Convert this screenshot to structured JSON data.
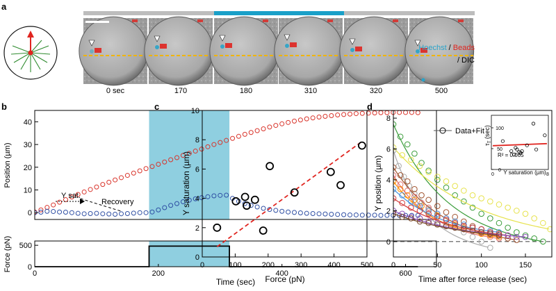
{
  "panel_a": {
    "letter": "a",
    "legend_hoechst": "Hoechst",
    "legend_slash1": " / ",
    "legend_beads": "Beads",
    "legend_dic": "/ DIC",
    "frames": [
      "0 sec",
      "170",
      "180",
      "310",
      "320",
      "500"
    ],
    "colors": {
      "hoechst": "#29a3c9",
      "beads": "#e0241f",
      "force_bar": "#1aa0c8",
      "idle_bar": "#bdbdbd",
      "dash": "#f0b400"
    }
  },
  "chart_data": [
    {
      "panel": "b-top",
      "type": "scatter",
      "letter": "b",
      "ylabel": "Position (µm)",
      "xlim": [
        0,
        650
      ],
      "ylim": [
        -3,
        45
      ],
      "yticks": [
        0,
        10,
        20,
        30,
        40
      ],
      "annotations": {
        "ysat": "Y sat.",
        "recovery": "Recovery"
      },
      "shaded": [
        185,
        315
      ],
      "series": [
        {
          "color": "#d9342b",
          "x": [
            0,
            10,
            20,
            30,
            40,
            50,
            60,
            70,
            80,
            90,
            100,
            110,
            120,
            130,
            140,
            150,
            160,
            170,
            180,
            190,
            200,
            210,
            220,
            230,
            240,
            250,
            260,
            270,
            280,
            290,
            300,
            310,
            320,
            330,
            340,
            350,
            360,
            370,
            380,
            390,
            400,
            410,
            420,
            430,
            440,
            450,
            460,
            470,
            480,
            490,
            500,
            510,
            520,
            530,
            540,
            550,
            560,
            570,
            580,
            590,
            600,
            610,
            620
          ],
          "y": [
            0.3,
            1.2,
            2.3,
            3.4,
            4.6,
            5.7,
            6.9,
            8.0,
            9.1,
            10.2,
            11.3,
            12.4,
            13.4,
            14.4,
            15.4,
            16.4,
            17.4,
            18.4,
            19.4,
            20.3,
            21.3,
            22.3,
            23.3,
            24.2,
            25.2,
            26.1,
            27.1,
            28.0,
            29.0,
            30.0,
            30.9,
            31.8,
            32.7,
            33.6,
            34.5,
            35.3,
            36.1,
            36.9,
            37.7,
            38.4,
            39.1,
            39.7,
            40.3,
            40.8,
            41.3,
            41.7,
            42.1,
            42.4,
            42.7,
            43.0,
            43.2,
            43.4,
            43.6,
            43.7,
            43.8,
            43.9,
            44.0,
            44.0,
            44.1,
            44.1,
            44.1,
            44.1,
            44.0
          ]
        },
        {
          "color": "#2e4ea3",
          "x": [
            0,
            10,
            20,
            30,
            40,
            50,
            60,
            70,
            80,
            90,
            100,
            110,
            120,
            130,
            140,
            150,
            160,
            170,
            180,
            190,
            200,
            210,
            220,
            230,
            240,
            250,
            260,
            270,
            280,
            290,
            300,
            310,
            320,
            330,
            340,
            350,
            360,
            370,
            380,
            390,
            400,
            410,
            420,
            430,
            440,
            450,
            460,
            470,
            480,
            490,
            500,
            510,
            520,
            530,
            540,
            550,
            560,
            570,
            580,
            590,
            600,
            610,
            620
          ],
          "y": [
            0,
            0.2,
            0.6,
            0.5,
            0.3,
            0.2,
            0,
            -0.3,
            -0.5,
            -0.4,
            -0.3,
            -0.5,
            -0.6,
            -0.7,
            -0.5,
            -0.4,
            -0.2,
            0,
            0,
            0.3,
            1.2,
            2.2,
            3.2,
            4.0,
            4.8,
            5.5,
            6.1,
            6.6,
            7.0,
            7.4,
            7.6,
            7.7,
            6.3,
            5.0,
            4.0,
            3.2,
            2.5,
            1.9,
            1.4,
            1.0,
            0.6,
            0.3,
            0.1,
            -0.1,
            -0.3,
            -0.4,
            -0.5,
            -0.6,
            -0.7,
            -0.8,
            -0.9,
            -1.0,
            -1.0,
            -1.1,
            -1.1,
            -1.1,
            -1.2,
            -1.2,
            -1.2,
            -1.2,
            -1.2,
            -1.2,
            -1.2
          ]
        }
      ]
    },
    {
      "panel": "b-bottom",
      "type": "line",
      "xlabel": "Time (sec)",
      "ylabel": "Force (pN)",
      "xlim": [
        0,
        650
      ],
      "ylim": [
        0,
        600
      ],
      "xticks": [
        0,
        200,
        400,
        600
      ],
      "yticks": [
        0,
        500
      ],
      "x": [
        0,
        185,
        185,
        315,
        315,
        620
      ],
      "y": [
        0,
        0,
        480,
        480,
        0,
        0
      ]
    },
    {
      "panel": "c",
      "type": "scatter",
      "letter": "c",
      "xlabel": "Force (pN)",
      "ylabel": "Y saturation (µm)",
      "xlim": [
        0,
        500
      ],
      "ylim": [
        0,
        10
      ],
      "xticks": [
        0,
        100,
        200,
        300,
        400,
        500
      ],
      "yticks": [
        0,
        2,
        4,
        6,
        8,
        10
      ],
      "x": [
        45,
        102,
        130,
        135,
        160,
        185,
        205,
        280,
        390,
        420,
        485
      ],
      "y": [
        2.0,
        3.8,
        4.1,
        3.5,
        3.9,
        1.8,
        6.2,
        4.4,
        5.8,
        4.9,
        7.6
      ],
      "fit": {
        "x": [
          45,
          480
        ],
        "y": [
          0.7,
          7.8
        ],
        "color": "#e0241f"
      }
    },
    {
      "panel": "d",
      "type": "scatter",
      "letter": "d",
      "xlabel": "Time after force release (sec)",
      "ylabel": "Y position (µm)",
      "xlim": [
        0,
        180
      ],
      "ylim": [
        -1,
        8.5
      ],
      "xticks": [
        0,
        50,
        100,
        150
      ],
      "yticks": [
        0,
        2,
        4,
        6,
        8
      ],
      "legend": "Data+Fit",
      "series": [
        {
          "color": "#3a9c3a",
          "y0": 7.6,
          "tau": 60,
          "x": [
            0,
            8,
            16,
            24,
            32,
            40,
            50,
            60,
            70,
            80,
            90,
            100,
            110,
            120,
            130,
            140,
            150,
            160,
            170
          ],
          "y": [
            7.6,
            6.8,
            6.3,
            5.7,
            5.1,
            4.6,
            4.0,
            3.5,
            3.0,
            2.6,
            2.2,
            1.8,
            1.5,
            1.2,
            0.9,
            0.6,
            0.4,
            0.2,
            0.0
          ]
        },
        {
          "color": "#e6e24a",
          "y0": 6.1,
          "tau": 95,
          "x": [
            0,
            10,
            20,
            30,
            40,
            50,
            60,
            70,
            80,
            90,
            100,
            110,
            120,
            130,
            140,
            150,
            160,
            170,
            178
          ],
          "y": [
            6.1,
            5.6,
            5.3,
            4.9,
            4.5,
            4.2,
            3.9,
            3.6,
            3.3,
            3.0,
            2.8,
            2.6,
            2.4,
            2.2,
            2.0,
            1.8,
            1.5,
            1.2,
            0.8
          ]
        },
        {
          "color": "#aaaaaa",
          "y0": 5.9,
          "tau": 35,
          "x": [
            0,
            6,
            12,
            18,
            24,
            30,
            40,
            50,
            60,
            70,
            80,
            90,
            100,
            110
          ],
          "y": [
            5.9,
            4.9,
            4.2,
            3.6,
            3.1,
            2.6,
            2.1,
            1.6,
            1.2,
            0.9,
            0.6,
            0.3,
            0.0,
            -0.4
          ]
        },
        {
          "color": "#a0522d",
          "y0": 4.8,
          "tau": 55,
          "x": [
            0,
            8,
            16,
            24,
            32,
            40,
            50,
            60,
            70,
            80,
            90,
            100,
            110,
            120,
            130,
            140
          ],
          "y": [
            4.8,
            4.3,
            3.9,
            3.4,
            3.0,
            2.7,
            2.3,
            1.9,
            1.6,
            1.3,
            1.0,
            0.8,
            0.6,
            0.4,
            0.2,
            0.1
          ]
        },
        {
          "color": "#e07070",
          "y0": 4.3,
          "tau": 45,
          "x": [
            0,
            8,
            16,
            24,
            32,
            40,
            50,
            60,
            70,
            80,
            90,
            100,
            110,
            120
          ],
          "y": [
            4.3,
            3.7,
            3.3,
            2.9,
            2.5,
            2.2,
            1.8,
            1.5,
            1.2,
            0.9,
            0.7,
            0.5,
            0.3,
            0.2
          ]
        },
        {
          "color": "#ff8c00",
          "y0": 3.9,
          "tau": 50,
          "x": [
            0,
            8,
            16,
            24,
            32,
            40,
            50,
            60,
            70,
            80,
            90,
            100,
            110,
            120
          ],
          "y": [
            3.9,
            3.4,
            3.0,
            2.7,
            2.3,
            2.0,
            1.7,
            1.4,
            1.1,
            0.9,
            0.7,
            0.5,
            0.4,
            0.3
          ]
        },
        {
          "color": "#4a90d9",
          "y0": 3.4,
          "tau": 60,
          "x": [
            0,
            10,
            20,
            30,
            40,
            50,
            60,
            70,
            80,
            90,
            100,
            110,
            120
          ],
          "y": [
            3.4,
            3.0,
            2.6,
            2.3,
            2.0,
            1.8,
            1.5,
            1.3,
            1.1,
            0.9,
            0.8,
            0.7,
            0.6
          ]
        },
        {
          "color": "#d23a3a",
          "y0": 2.8,
          "tau": 70,
          "x": [
            0,
            10,
            20,
            30,
            40,
            50,
            60,
            70,
            80,
            90,
            100,
            110,
            120,
            130
          ],
          "y": [
            2.8,
            2.5,
            2.2,
            2.0,
            1.8,
            1.6,
            1.4,
            1.2,
            1.0,
            0.9,
            0.8,
            0.6,
            0.5,
            0.4
          ]
        },
        {
          "color": "#8c4fb8",
          "y0": 2.0,
          "tau": 80,
          "x": [
            0,
            10,
            20,
            30,
            40,
            50,
            60,
            70,
            80,
            90,
            100,
            110,
            120,
            130,
            140,
            150
          ],
          "y": [
            2.0,
            1.8,
            1.6,
            1.5,
            1.3,
            1.2,
            1.0,
            0.9,
            0.8,
            0.7,
            0.6,
            0.5,
            0.4,
            0.4,
            0.3,
            0.3
          ]
        },
        {
          "color": "#7a4a2a",
          "y0": 1.8,
          "tau": 90,
          "x": [
            0,
            10,
            20,
            30,
            40,
            50,
            60,
            70,
            80,
            90,
            100,
            110,
            120
          ],
          "y": [
            1.8,
            1.6,
            1.5,
            1.3,
            1.2,
            1.1,
            1.0,
            0.9,
            0.8,
            0.7,
            0.6,
            0.5,
            0.4
          ]
        }
      ],
      "inset": {
        "xlabel": "Y saturation (µm)",
        "ylabel": "τT (sec)",
        "ylabel_main": "τ",
        "ylabel_sub": "T",
        "ylabel_unit": " (sec)",
        "r2": "R² = 0.065",
        "xlim": [
          0,
          8
        ],
        "ylim": [
          0,
          130
        ],
        "xtick_labels": [
          "0",
          "8"
        ],
        "yticks": [
          0,
          50,
          100
        ],
        "x": [
          1.6,
          2.8,
          3.2,
          3.4,
          3.6,
          3.9,
          4.1,
          4.3,
          5.0,
          5.9,
          6.3,
          7.5
        ],
        "y": [
          68,
          44,
          36,
          52,
          48,
          42,
          40,
          44,
          58,
          110,
          48,
          82
        ],
        "fit": {
          "x": [
            0.2,
            7.8
          ],
          "y": [
            57,
            62
          ],
          "color": "#e0241f"
        }
      }
    }
  ]
}
